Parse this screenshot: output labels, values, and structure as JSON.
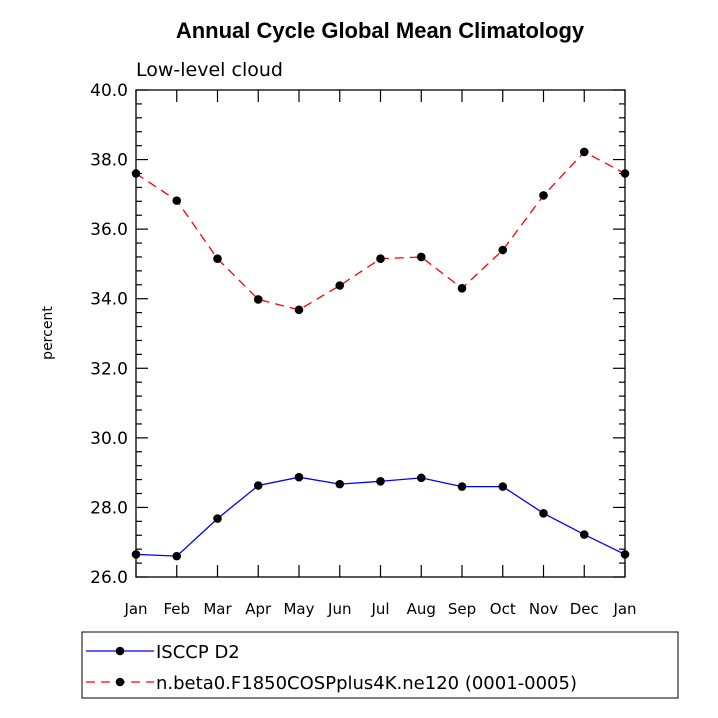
{
  "chart_data": {
    "type": "line",
    "title": "Annual Cycle Global Mean Climatology",
    "subtitle": "Low-level cloud",
    "xlabel": "",
    "ylabel": "percent",
    "categories": [
      "Jan",
      "Feb",
      "Mar",
      "Apr",
      "May",
      "Jun",
      "Jul",
      "Aug",
      "Sep",
      "Oct",
      "Nov",
      "Dec",
      "Jan"
    ],
    "ylim": [
      26.0,
      40.0
    ],
    "yticks": [
      "26.0",
      "28.0",
      "30.0",
      "32.0",
      "34.0",
      "36.0",
      "38.0",
      "40.0"
    ],
    "grid": false,
    "legend_position": "bottom",
    "series": [
      {
        "name": "ISCCP D2",
        "color": "#0000ff",
        "dash": "solid",
        "values": [
          26.65,
          26.6,
          27.68,
          28.63,
          28.87,
          28.67,
          28.75,
          28.85,
          28.6,
          28.6,
          27.83,
          27.22,
          26.65
        ]
      },
      {
        "name": "n.beta0.F1850COSPplus4K.ne120 (0001-0005)",
        "color": "#ff0000",
        "dash": "dashed",
        "values": [
          37.6,
          36.82,
          35.15,
          33.98,
          33.68,
          34.38,
          35.15,
          35.2,
          34.3,
          35.4,
          36.97,
          38.22,
          37.6
        ]
      }
    ]
  }
}
